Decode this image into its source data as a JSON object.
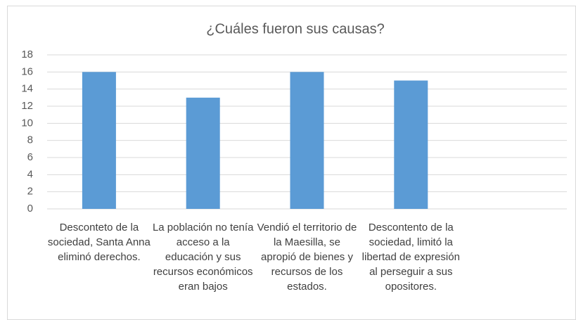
{
  "chart_data": {
    "type": "bar",
    "title": "¿Cuáles fueron sus causas?",
    "categories": [
      "Desconteto de la sociedad, Santa Anna eliminó derechos.",
      "La población no tenía acceso a la educación y sus recursos económicos eran bajos",
      "Vendió el territorio de la Maesilla, se apropió de bienes y recursos de los estados.",
      "Descontento de la sociedad, limitó la libertad de expresión al perseguir a sus opositores.",
      null
    ],
    "values": [
      16,
      13,
      16,
      15,
      null
    ],
    "color": "#5b9bd5",
    "ylim": [
      0,
      18
    ],
    "yticks": [
      0,
      2,
      4,
      6,
      8,
      10,
      12,
      14,
      16,
      18
    ],
    "grid": true
  }
}
